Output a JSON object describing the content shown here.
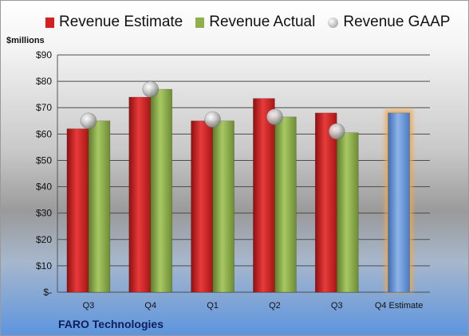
{
  "chart_data": {
    "type": "bar",
    "ylabel": "$millions",
    "footer": "FARO Technologies",
    "ylim": [
      0,
      90
    ],
    "y_ticks": [
      "$-",
      "$10",
      "$20",
      "$30",
      "$40",
      "$50",
      "$60",
      "$70",
      "$80",
      "$90"
    ],
    "categories": [
      "Q3",
      "Q4",
      "Q1",
      "Q2",
      "Q3",
      "Q4 Estimate"
    ],
    "series": [
      {
        "name": "Revenue Estimate",
        "type": "bar",
        "color": "#d42020",
        "values": [
          62,
          74,
          65,
          73.5,
          68,
          null
        ]
      },
      {
        "name": "Revenue Actual",
        "type": "bar",
        "color": "#8fb04a",
        "values": [
          65,
          77,
          65,
          66.5,
          60.5,
          null
        ]
      },
      {
        "name": "Revenue GAAP",
        "type": "marker",
        "color": "#c0c0c0",
        "values": [
          65,
          77,
          65.5,
          66.5,
          61,
          null
        ]
      },
      {
        "name": "Q4 Estimate",
        "type": "bar",
        "color": "#5b8fd6",
        "highlight": "#f4a742",
        "values": [
          null,
          null,
          null,
          null,
          null,
          68
        ]
      }
    ],
    "legend_position": "top",
    "grid": true
  }
}
